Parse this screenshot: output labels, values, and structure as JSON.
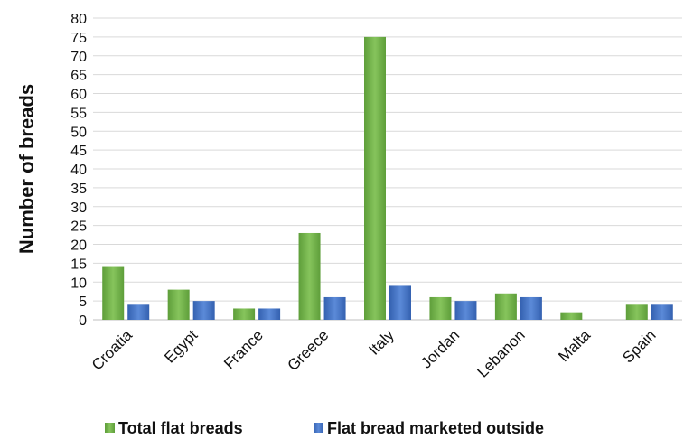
{
  "chart_data": {
    "type": "bar",
    "categories": [
      "Croatia",
      "Egypt",
      "France",
      "Greece",
      "Italy",
      "Jordan",
      "Lebanon",
      "Malta",
      "Spain"
    ],
    "series": [
      {
        "name": "Total flat breads",
        "values": [
          14,
          8,
          3,
          23,
          75,
          6,
          7,
          2,
          4
        ],
        "color": "#70ad47"
      },
      {
        "name": "Flat bread marketed outside",
        "values": [
          4,
          5,
          3,
          6,
          9,
          5,
          6,
          0,
          4
        ],
        "color": "#4472c4"
      }
    ],
    "xlabel": "",
    "ylabel": "Number of breads",
    "ylim": [
      0,
      80
    ],
    "ytick_step": 5,
    "grid": true,
    "legend_position": "bottom"
  }
}
